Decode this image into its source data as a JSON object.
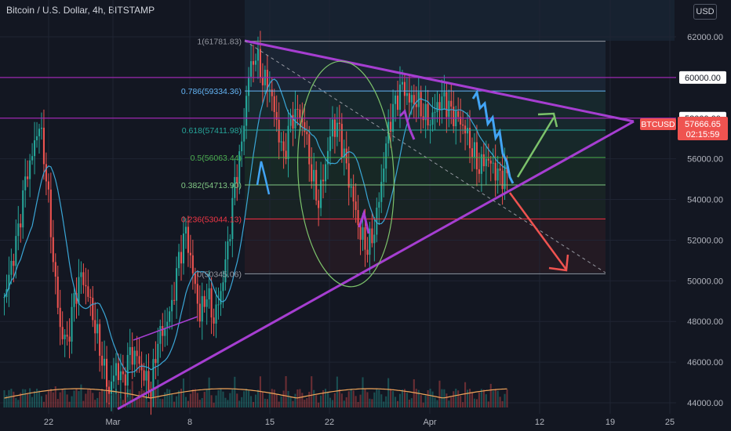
{
  "header": {
    "title": "Bitcoin / U.S. Dollar, 4h, BITSTAMP",
    "currency_button": "USD"
  },
  "chart_data": {
    "type": "candlestick",
    "symbol": "BTCUSD",
    "last_price": "57666.65",
    "countdown": "02:15:59",
    "price_axis": {
      "ylim": [
        43400,
        63400
      ],
      "ticks": [
        "62000.00",
        "60000.00",
        "58000.00",
        "56000.00",
        "54000.00",
        "52000.00",
        "50000.00",
        "48000.00",
        "46000.00",
        "44000.00"
      ]
    },
    "time_axis": {
      "ticks": [
        "22",
        "Mar",
        "8",
        "15",
        "22",
        "Apr",
        "12",
        "19",
        "25"
      ]
    },
    "fibonacci": [
      {
        "label": "1(61781.83)",
        "value": 61781.83,
        "color": "#9598a1"
      },
      {
        "label": "0.786(59334.36)",
        "value": 59334.36,
        "color": "#64b5f6"
      },
      {
        "label": "0.618(57411.98)",
        "value": 57411.98,
        "color": "#26a69a"
      },
      {
        "label": "0.5(56063.44)",
        "value": 56063.44,
        "color": "#4caf50"
      },
      {
        "label": "0.382(54713.90)",
        "value": 54713.9,
        "color": "#81c784"
      },
      {
        "label": "0.236(53044.13)",
        "value": 53044.13,
        "color": "#f23645"
      },
      {
        "label": "0(50345.06)",
        "value": 50345.06,
        "color": "#9598a1"
      }
    ],
    "horizontal_levels": [
      {
        "label": "60000.00",
        "value": 60000,
        "color": "#9c27b0"
      },
      {
        "label": "58000.00",
        "value": 58000,
        "color": "#9c27b0"
      }
    ],
    "candles_close": [
      49200,
      50600,
      52300,
      54800,
      56200,
      57900,
      55400,
      51200,
      47600,
      46800,
      48900,
      50200,
      49400,
      47900,
      46300,
      44600,
      45700,
      44900,
      46300,
      46200,
      45400,
      44800,
      47300,
      47700,
      48700,
      50900,
      52300,
      50400,
      48400,
      49600,
      48200,
      49400,
      51500,
      54600,
      56600,
      60200,
      61300,
      60100,
      59600,
      57700,
      55900,
      57700,
      58300,
      57600,
      55400,
      54000,
      55800,
      57600,
      57200,
      55400,
      53900,
      52400,
      51800,
      52600,
      54800,
      57400,
      58600,
      59500,
      58900,
      59000,
      58400,
      57900,
      58600,
      58800,
      58100,
      57900,
      57500,
      56600,
      55700,
      56100,
      55500,
      54900,
      55300
    ],
    "colors": {
      "up": "#26a69a",
      "down": "#ef5350",
      "ma": "#3aa6d6",
      "volume_ma": "#f0a45a",
      "trend": "#a63ed1"
    }
  }
}
